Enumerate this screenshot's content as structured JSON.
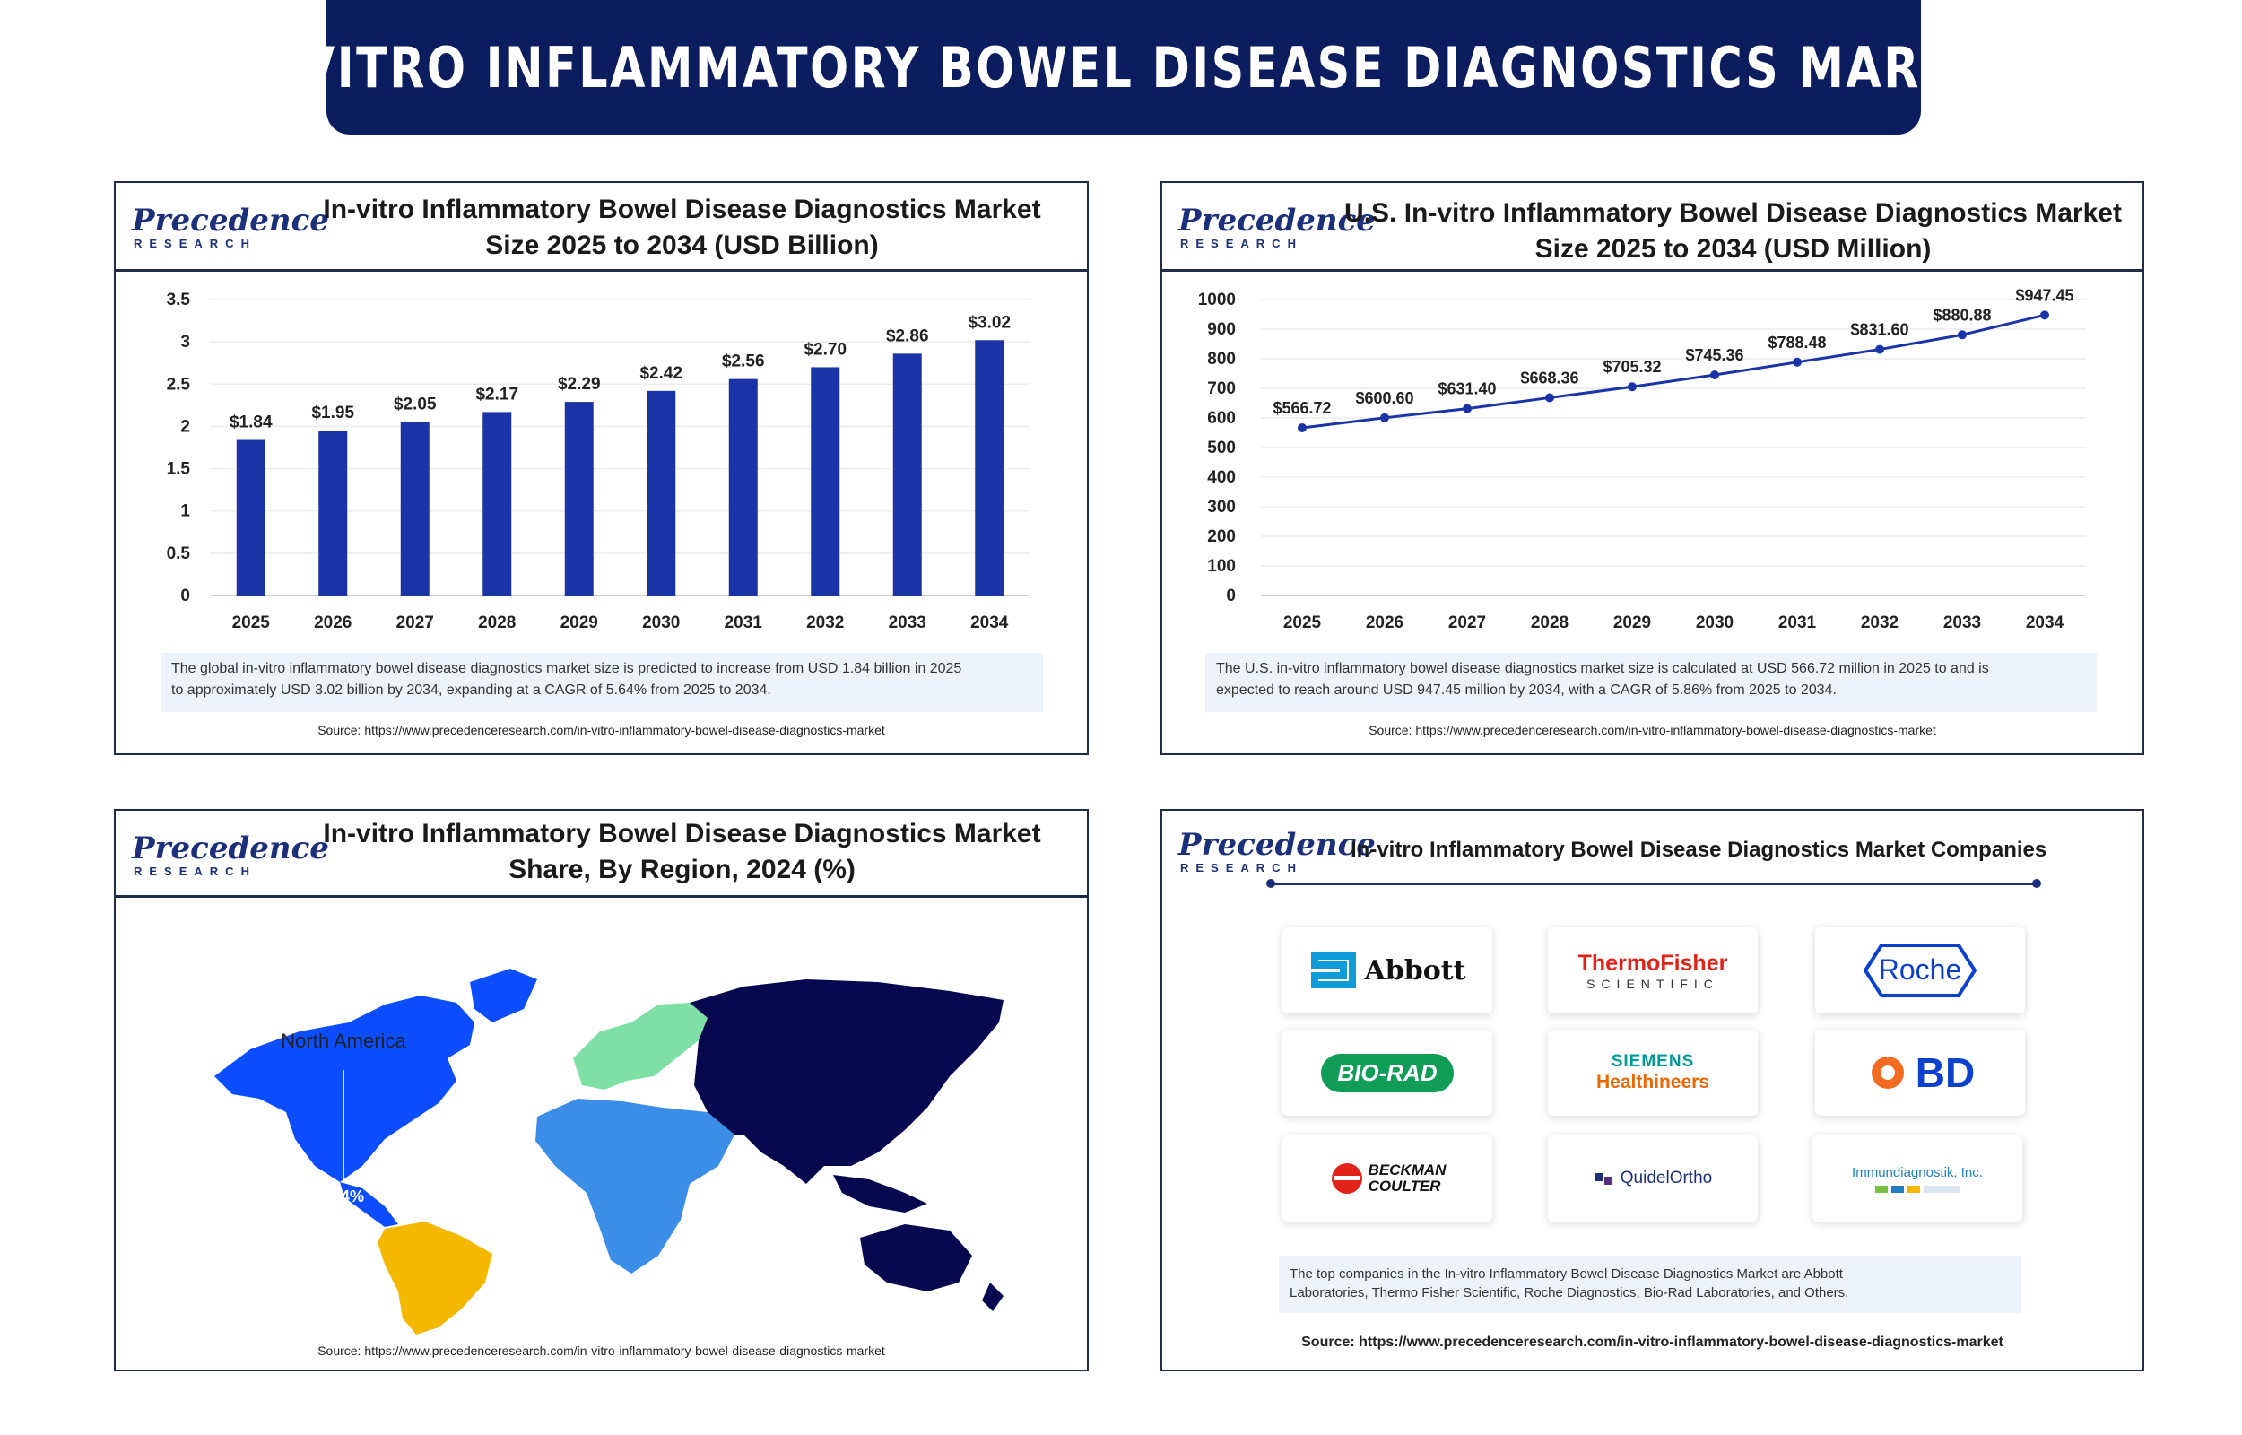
{
  "title": "IN-VITRO INFLAMMATORY BOWEL DISEASE DIAGNOSTICS MARKET",
  "logo": {
    "word": "Precedence",
    "sub": "RESEARCH"
  },
  "colors": {
    "navy": "#0b1d5e",
    "bar": "#1a34a8",
    "line": "#1a34a8",
    "north_america": "#0b4dff",
    "europe": "#7ee0a6",
    "asia_pacific": "#06094f",
    "latin_america": "#f5b800",
    "mea": "#3b8ee8"
  },
  "panel1": {
    "title_line1": "In-vitro Inflammatory Bowel Disease Diagnostics Market",
    "title_line2": "Size 2025 to 2034 (USD Billion)",
    "note_line1": "The global in-vitro inflammatory bowel disease diagnostics market size is predicted to increase from USD 1.84 billion in 2025",
    "note_line2": "to approximately USD 3.02 billion by 2034, expanding at a CAGR of 5.64% from 2025 to 2034.",
    "source": "Source: https://www.precedenceresearch.com/in-vitro-inflammatory-bowel-disease-diagnostics-market"
  },
  "panel2": {
    "title_line1": "U.S. In-vitro Inflammatory Bowel Disease Diagnostics Market",
    "title_line2": "Size 2025 to 2034 (USD Million)",
    "note_line1": "The U.S. in-vitro inflammatory bowel disease diagnostics market size is calculated at USD 566.72 million in 2025 to and is",
    "note_line2": "expected to reach around USD 947.45 million by 2034, with a CAGR of 5.86% from 2025 to 2034.",
    "source": "Source: https://www.precedenceresearch.com/in-vitro-inflammatory-bowel-disease-diagnostics-market"
  },
  "panel3": {
    "title_line1": "In-vitro Inflammatory Bowel Disease Diagnostics Market",
    "title_line2": "Share, By Region, 2024 (%)",
    "callout_label": "North America",
    "callout_value": "44%",
    "source": "Source: https://www.precedenceresearch.com/in-vitro-inflammatory-bowel-disease-diagnostics-market"
  },
  "panel4": {
    "title": "In-vitro Inflammatory Bowel Disease Diagnostics Market Companies",
    "companies": [
      "Abbott",
      "ThermoFisher",
      "SCIENTIFIC",
      "Roche",
      "BIO-RAD",
      "SIEMENS",
      "Healthineers",
      "BD",
      "BECKMAN",
      "COULTER",
      "QuidelOrtho",
      "Immundiagnostik, Inc."
    ],
    "note_line1": "The top companies in the In-vitro Inflammatory Bowel Disease Diagnostics Market  are Abbott",
    "note_line2": "Laboratories, Thermo Fisher Scientific, Roche Diagnostics, Bio-Rad Laboratories, and Others.",
    "source": "Source: https://www.precedenceresearch.com/in-vitro-inflammatory-bowel-disease-diagnostics-market"
  },
  "chart_data": [
    {
      "type": "bar",
      "title": "In-vitro Inflammatory Bowel Disease Diagnostics Market Size 2025 to 2034 (USD Billion)",
      "categories": [
        "2025",
        "2026",
        "2027",
        "2028",
        "2029",
        "2030",
        "2031",
        "2032",
        "2033",
        "2034"
      ],
      "values": [
        1.84,
        1.95,
        2.05,
        2.17,
        2.29,
        2.42,
        2.56,
        2.7,
        2.86,
        3.02
      ],
      "labels": [
        "$1.84",
        "$1.95",
        "$2.05",
        "$2.17",
        "$2.29",
        "$2.42",
        "$2.56",
        "$2.70",
        "$2.86",
        "$3.02"
      ],
      "yticks": [
        "0",
        "0.5",
        "1",
        "1.5",
        "2",
        "2.5",
        "3",
        "3.5"
      ],
      "ylim": [
        0,
        3.5
      ],
      "grid": true
    },
    {
      "type": "line",
      "title": "U.S. In-vitro Inflammatory Bowel Disease Diagnostics Market Size 2025 to 2034 (USD Million)",
      "categories": [
        "2025",
        "2026",
        "2027",
        "2028",
        "2029",
        "2030",
        "2031",
        "2032",
        "2033",
        "2034"
      ],
      "values": [
        566.72,
        600.6,
        631.4,
        668.36,
        705.32,
        745.36,
        788.48,
        831.6,
        880.88,
        947.45
      ],
      "labels": [
        "$566.72",
        "$600.60",
        "$631.40",
        "$668.36",
        "$705.32",
        "$745.36",
        "$788.48",
        "$831.60",
        "$880.88",
        "$947.45"
      ],
      "yticks": [
        "0",
        "100",
        "200",
        "300",
        "400",
        "500",
        "600",
        "700",
        "800",
        "900",
        "1000"
      ],
      "ylim": [
        0,
        1000
      ],
      "grid": true
    },
    {
      "type": "map",
      "title": "In-vitro Inflammatory Bowel Disease Diagnostics Market Share, By Region, 2024 (%)",
      "annotations": [
        {
          "region": "North America",
          "value": 44
        }
      ]
    }
  ]
}
